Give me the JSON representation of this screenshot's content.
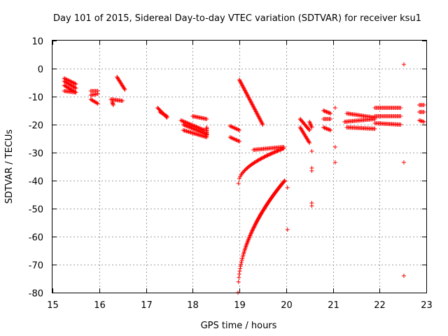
{
  "chart_data": {
    "type": "scatter",
    "title": "Day 101 of 2015, Sidereal Day-to-day VTEC variation (SDTVAR) for receiver ksu1",
    "xlabel": "GPS time / hours",
    "ylabel": "SDTVAR / TECUs",
    "xlim": [
      15,
      23
    ],
    "ylim": [
      -80,
      10
    ],
    "xticks": [
      15,
      16,
      17,
      18,
      19,
      20,
      21,
      22,
      23
    ],
    "yticks": [
      10,
      0,
      -10,
      -20,
      -30,
      -40,
      -50,
      -60,
      -70,
      -80
    ],
    "grid": true,
    "marker": "+",
    "color": "#ff0000",
    "segments": [
      {
        "x0": 15.25,
        "x1": 15.5,
        "y0": -3.5,
        "y1": -5.5
      },
      {
        "x0": 15.25,
        "x1": 15.5,
        "y0": -4.5,
        "y1": -7.0
      },
      {
        "x0": 15.25,
        "x1": 15.5,
        "y0": -6.0,
        "y1": -8.5
      },
      {
        "x0": 15.25,
        "x1": 15.5,
        "y0": -8.0,
        "y1": -8.5
      },
      {
        "x0": 15.82,
        "x1": 15.97,
        "y0": -8.0,
        "y1": -8.0
      },
      {
        "x0": 15.82,
        "x1": 15.97,
        "y0": -9.5,
        "y1": -9.0
      },
      {
        "x0": 15.82,
        "x1": 15.97,
        "y0": -11.0,
        "y1": -12.5
      },
      {
        "x0": 16.25,
        "x1": 16.5,
        "y0": -11.0,
        "y1": -11.5
      },
      {
        "x0": 16.28,
        "x1": 16.3,
        "y0": -12.0,
        "y1": -13.0
      },
      {
        "x0": 16.38,
        "x1": 16.55,
        "y0": -3.0,
        "y1": -7.5
      },
      {
        "x0": 17.25,
        "x1": 17.45,
        "y0": -14.0,
        "y1": -17.5
      },
      {
        "x0": 17.3,
        "x1": 17.45,
        "y0": -15.5,
        "y1": -17.0
      },
      {
        "x0": 17.75,
        "x1": 18.25,
        "y0": -18.5,
        "y1": -22.0
      },
      {
        "x0": 17.8,
        "x1": 18.3,
        "y0": -20.0,
        "y1": -23.5
      },
      {
        "x0": 17.8,
        "x1": 18.3,
        "y0": -22.0,
        "y1": -24.5
      },
      {
        "x0": 18.0,
        "x1": 18.3,
        "y0": -17.0,
        "y1": -18.0
      },
      {
        "x0": 18.3,
        "x1": 18.3,
        "y0": -21.0,
        "y1": -24.0
      },
      {
        "x0": 18.8,
        "x1": 19.0,
        "y0": -20.5,
        "y1": -22.0
      },
      {
        "x0": 18.8,
        "x1": 19.0,
        "y0": -24.5,
        "y1": -26.0
      },
      {
        "x0": 19.0,
        "x1": 19.5,
        "y0": -4.0,
        "y1": -20.0
      },
      {
        "x0": 19.3,
        "x1": 19.95,
        "y0": -29.0,
        "y1": -28.0
      },
      {
        "x0": 18.98,
        "x1": 19.95,
        "y0": -41.0,
        "y1": -28.5
      },
      {
        "x0": 18.97,
        "x1": 19.97,
        "y0": -80.0,
        "y1": -40.0
      },
      {
        "x0": 20.3,
        "x1": 20.5,
        "y0": -18.0,
        "y1": -22.0
      },
      {
        "x0": 20.3,
        "x1": 20.5,
        "y0": -21.0,
        "y1": -26.5
      },
      {
        "x0": 20.5,
        "x1": 20.55,
        "y0": -19.0,
        "y1": -21.0
      },
      {
        "x0": 20.8,
        "x1": 20.95,
        "y0": -15.0,
        "y1": -16.0
      },
      {
        "x0": 20.8,
        "x1": 20.95,
        "y0": -18.0,
        "y1": -18.0
      },
      {
        "x0": 20.8,
        "x1": 20.95,
        "y0": -21.0,
        "y1": -22.0
      },
      {
        "x0": 21.3,
        "x1": 21.9,
        "y0": -16.0,
        "y1": -17.5
      },
      {
        "x0": 21.25,
        "x1": 21.9,
        "y0": -19.0,
        "y1": -18.0
      },
      {
        "x0": 21.3,
        "x1": 21.9,
        "y0": -21.0,
        "y1": -21.5
      },
      {
        "x0": 21.9,
        "x1": 22.45,
        "y0": -14.0,
        "y1": -14.0
      },
      {
        "x0": 21.9,
        "x1": 22.45,
        "y0": -17.0,
        "y1": -17.0
      },
      {
        "x0": 21.9,
        "x1": 22.45,
        "y0": -19.5,
        "y1": -20.0
      },
      {
        "x0": 22.85,
        "x1": 22.95,
        "y0": -13.0,
        "y1": -13.0
      },
      {
        "x0": 22.85,
        "x1": 22.95,
        "y0": -15.5,
        "y1": -15.5
      },
      {
        "x0": 22.85,
        "x1": 22.95,
        "y0": -18.5,
        "y1": -19.0
      }
    ],
    "points": [
      {
        "x": 20.03,
        "y": -42.5
      },
      {
        "x": 20.03,
        "y": -57.5
      },
      {
        "x": 20.55,
        "y": -29.5
      },
      {
        "x": 20.55,
        "y": -35.5
      },
      {
        "x": 20.55,
        "y": -36.5
      },
      {
        "x": 20.55,
        "y": -48.0
      },
      {
        "x": 20.55,
        "y": -49.0
      },
      {
        "x": 21.05,
        "y": -14.0
      },
      {
        "x": 21.05,
        "y": -28.0
      },
      {
        "x": 21.05,
        "y": -33.5
      },
      {
        "x": 22.52,
        "y": 1.5
      },
      {
        "x": 22.52,
        "y": -33.5
      },
      {
        "x": 22.52,
        "y": -74.0
      }
    ]
  }
}
